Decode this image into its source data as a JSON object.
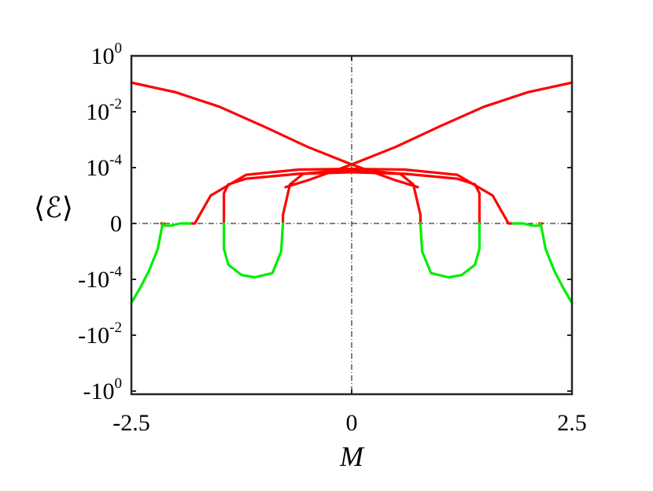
{
  "chart_data": {
    "type": "line",
    "title": "",
    "xlabel": "M",
    "ylabel": "⟨ℰ⟩",
    "xlim": [
      -2.5,
      2.5
    ],
    "y_scale": "symmetric-log",
    "ylim": [
      -1,
      1
    ],
    "x_ticks": [
      {
        "value": -2.5,
        "label": "-2.5"
      },
      {
        "value": 0,
        "label": "0"
      },
      {
        "value": 2.5,
        "label": "2.5"
      }
    ],
    "y_ticks": [
      {
        "value": 1,
        "base": "10",
        "exp": "0"
      },
      {
        "value": 0.01,
        "base": "10",
        "exp": "-2"
      },
      {
        "value": 0.0001,
        "base": "10",
        "exp": "-4"
      },
      {
        "value": 0,
        "base": "0",
        "exp": ""
      },
      {
        "value": -0.0001,
        "base": "-10",
        "exp": "-4"
      },
      {
        "value": -0.01,
        "base": "-10",
        "exp": "-2"
      },
      {
        "value": -1,
        "base": "-10",
        "exp": "0"
      }
    ],
    "reference_lines": {
      "vertical_x": 0,
      "horizontal_y": 0,
      "style": "dash-dot"
    },
    "colors": {
      "positive": "#ff0000",
      "negative": "#00ee00",
      "axis": "#000000"
    },
    "series": [
      {
        "color": "#ff0000",
        "points": [
          [
            -2.5,
            0.11
          ],
          [
            -2.0,
            0.05
          ],
          [
            -1.5,
            0.015
          ],
          [
            -1.0,
            0.003
          ],
          [
            -0.5,
            0.00055
          ],
          [
            0,
            0.00013
          ],
          [
            0.5,
            3.5e-05
          ],
          [
            0.75,
            2e-05
          ]
        ]
      },
      {
        "color": "#ff0000",
        "points": [
          [
            -0.75,
            2e-05
          ],
          [
            -0.5,
            3.5e-05
          ],
          [
            0,
            0.00013
          ],
          [
            0.5,
            0.00055
          ],
          [
            1.0,
            0.003
          ],
          [
            1.5,
            0.015
          ],
          [
            2.0,
            0.05
          ],
          [
            2.5,
            0.11
          ]
        ]
      },
      {
        "color": "#ff0000",
        "points": [
          [
            -1.82,
            0
          ],
          [
            -1.78,
            1e-06
          ],
          [
            -1.6,
            1e-05
          ],
          [
            -1.2,
            5.5e-05
          ],
          [
            -0.6,
            8.5e-05
          ],
          [
            0,
            9e-05
          ],
          [
            0.6,
            8.5e-05
          ],
          [
            1.2,
            5.5e-05
          ],
          [
            1.6,
            1e-05
          ],
          [
            1.78,
            1e-06
          ],
          [
            1.82,
            0
          ]
        ]
      },
      {
        "color": "#ff0000",
        "points": [
          [
            -1.45,
            0
          ],
          [
            -1.45,
            1.2e-05
          ],
          [
            -1.4,
            2.5e-05
          ],
          [
            -1.2,
            4e-05
          ],
          [
            -0.6,
            6e-05
          ],
          [
            0,
            6.8e-05
          ],
          [
            0.6,
            6e-05
          ],
          [
            1.2,
            4e-05
          ],
          [
            1.4,
            2.5e-05
          ],
          [
            1.45,
            1.2e-05
          ],
          [
            1.45,
            0
          ]
        ]
      },
      {
        "color": "#ff0000",
        "points": [
          [
            -0.78,
            0
          ],
          [
            -0.78,
            2e-06
          ],
          [
            -0.7,
            2.5e-05
          ],
          [
            -0.55,
            6e-05
          ],
          [
            -0.3,
            7.2e-05
          ],
          [
            0,
            7.5e-05
          ],
          [
            0.3,
            7.2e-05
          ],
          [
            0.55,
            6e-05
          ],
          [
            0.7,
            2.5e-05
          ],
          [
            0.78,
            2e-06
          ],
          [
            0.78,
            0
          ]
        ]
      },
      {
        "color": "#ff0000",
        "points": [
          [
            -2.16,
            0
          ],
          [
            -2.16,
            8e-07
          ],
          [
            -2.13,
            9e-07
          ],
          [
            -2.13,
            0
          ]
        ]
      },
      {
        "color": "#ff0000",
        "points": [
          [
            2.13,
            0
          ],
          [
            2.13,
            9e-07
          ],
          [
            2.16,
            8e-07
          ],
          [
            2.16,
            0
          ]
        ]
      },
      {
        "color": "#00ee00",
        "points": [
          [
            -1.45,
            0
          ],
          [
            -1.45,
            -8e-06
          ],
          [
            -1.4,
            -3e-05
          ],
          [
            -1.25,
            -7e-05
          ],
          [
            -1.1,
            -8.5e-05
          ],
          [
            -0.9,
            -6e-05
          ],
          [
            -0.8,
            -1e-05
          ],
          [
            -0.78,
            0
          ]
        ]
      },
      {
        "color": "#00ee00",
        "points": [
          [
            0.78,
            0
          ],
          [
            0.8,
            -1e-05
          ],
          [
            0.9,
            -6e-05
          ],
          [
            1.1,
            -8.5e-05
          ],
          [
            1.25,
            -7e-05
          ],
          [
            1.4,
            -3e-05
          ],
          [
            1.45,
            -8e-06
          ],
          [
            1.45,
            0
          ]
        ]
      },
      {
        "color": "#00ee00",
        "points": [
          [
            -2.5,
            -0.0007
          ],
          [
            -2.4,
            -0.0002
          ],
          [
            -2.3,
            -5e-05
          ],
          [
            -2.2,
            -8e-06
          ],
          [
            -2.15,
            -1.2e-06
          ],
          [
            -2.14,
            0
          ]
        ]
      },
      {
        "color": "#00ee00",
        "points": [
          [
            -2.14,
            -1.2e-06
          ],
          [
            -2.05,
            -1.2e-06
          ],
          [
            -1.95,
            -8e-07
          ],
          [
            -1.87,
            -2e-07
          ],
          [
            -1.83,
            0
          ]
        ]
      },
      {
        "color": "#00ee00",
        "points": [
          [
            1.83,
            0
          ],
          [
            1.87,
            -2e-07
          ],
          [
            1.95,
            -8e-07
          ],
          [
            2.05,
            -1.2e-06
          ],
          [
            2.14,
            -1.2e-06
          ]
        ]
      },
      {
        "color": "#00ee00",
        "points": [
          [
            2.14,
            0
          ],
          [
            2.15,
            -1.2e-06
          ],
          [
            2.2,
            -8e-06
          ],
          [
            2.3,
            -5e-05
          ],
          [
            2.4,
            -0.0002
          ],
          [
            2.5,
            -0.0007
          ]
        ]
      }
    ]
  }
}
